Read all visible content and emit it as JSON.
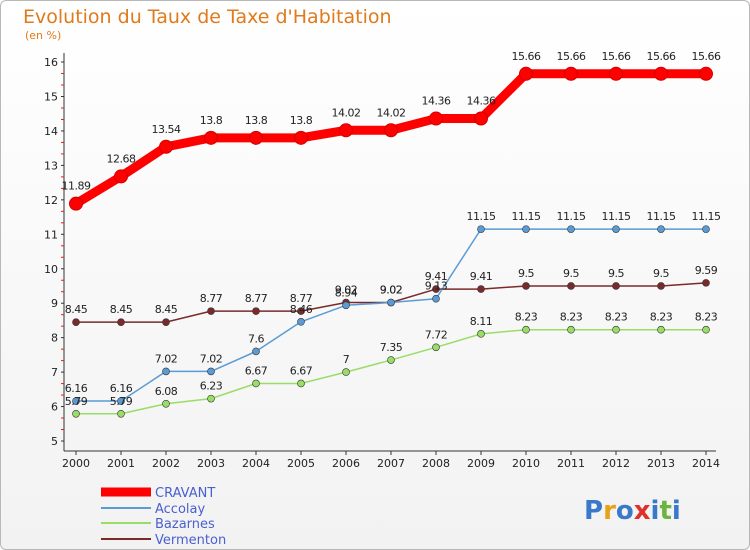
{
  "title": "Evolution du Taux de Taxe d'Habitation",
  "subtitle": "(en %)",
  "brand": "Proxiti",
  "chart_data": {
    "type": "line",
    "title": "Evolution du Taux de Taxe d'Habitation",
    "ylabel": "(en %)",
    "ylim": [
      5,
      16
    ],
    "yticks": [
      "5",
      "6",
      "7",
      "8",
      "9",
      "10",
      "11",
      "12",
      "13",
      "14",
      "15",
      "16"
    ],
    "x": [
      "2000",
      "2001",
      "2002",
      "2003",
      "2004",
      "2005",
      "2006",
      "2007",
      "2008",
      "2009",
      "2010",
      "2011",
      "2012",
      "2013",
      "2014"
    ],
    "grid": false,
    "legend_position": "bottom-left",
    "series": [
      {
        "name": "CRAVANT",
        "color": "#ff0000",
        "values": [
          11.89,
          12.68,
          13.54,
          13.8,
          13.8,
          13.8,
          14.02,
          14.02,
          14.36,
          14.36,
          15.66,
          15.66,
          15.66,
          15.66,
          15.66
        ],
        "labels": [
          "11.89",
          "12.68",
          "13.54",
          "13.8",
          "13.8",
          "13.8",
          "14.02",
          "14.02",
          "14.36",
          "14.36",
          "15.66",
          "15.66",
          "15.66",
          "15.66",
          "15.66"
        ]
      },
      {
        "name": "Accolay",
        "color": "#5b9bd5",
        "values": [
          6.16,
          6.16,
          7.02,
          7.02,
          7.6,
          8.46,
          8.94,
          9.02,
          9.13,
          11.15,
          11.15,
          11.15,
          11.15,
          11.15,
          11.15
        ],
        "labels": [
          "6.16",
          "6.16",
          "7.02",
          "7.02",
          "7.6",
          "8.46",
          "8.94",
          "9.02",
          "9.13",
          "11.15",
          "11.15",
          "11.15",
          "11.15",
          "11.15",
          "11.15"
        ]
      },
      {
        "name": "Bazarnes",
        "color": "#99dd66",
        "values": [
          5.79,
          5.79,
          6.08,
          6.23,
          6.67,
          6.67,
          7,
          7.35,
          7.72,
          8.11,
          8.23,
          8.23,
          8.23,
          8.23,
          8.23
        ],
        "labels": [
          "5.79",
          "5.79",
          "6.08",
          "6.23",
          "6.67",
          "6.67",
          "7",
          "7.35",
          "7.72",
          "8.11",
          "8.23",
          "8.23",
          "8.23",
          "8.23",
          "8.23"
        ]
      },
      {
        "name": "Vermenton",
        "color": "#7a2a2a",
        "values": [
          8.45,
          8.45,
          8.45,
          8.77,
          8.77,
          8.77,
          9.02,
          9.02,
          9.41,
          9.41,
          9.5,
          9.5,
          9.5,
          9.5,
          9.59
        ],
        "labels": [
          "8.45",
          "8.45",
          "8.45",
          "8.77",
          "8.77",
          "8.77",
          "9.02",
          "9.02",
          "9.41",
          "9.41",
          "9.5",
          "9.5",
          "9.5",
          "9.5",
          "9.59"
        ]
      }
    ]
  }
}
